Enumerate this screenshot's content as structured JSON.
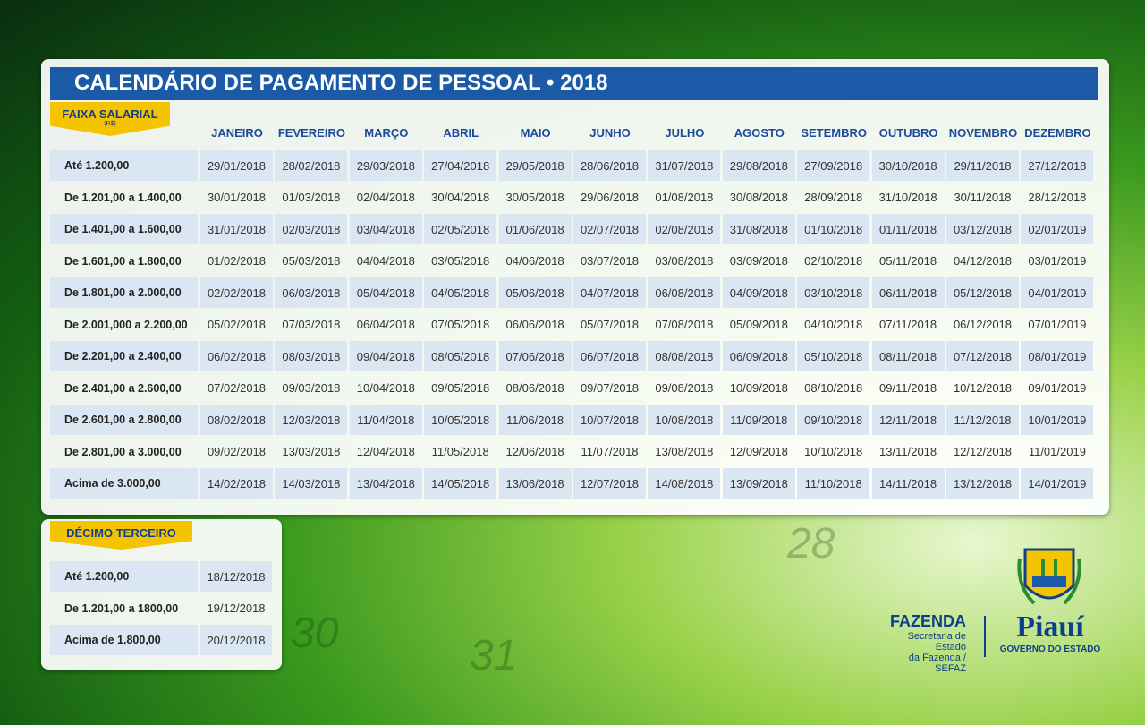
{
  "title": "CALENDÁRIO DE PAGAMENTO DE PESSOAL • 2018",
  "table": {
    "range_label": "FAIXA SALARIAL",
    "range_unit": "(R$)",
    "months": [
      "JANEIRO",
      "FEVEREIRO",
      "MARÇO",
      "ABRIL",
      "MAIO",
      "JUNHO",
      "JULHO",
      "AGOSTO",
      "SETEMBRO",
      "OUTUBRO",
      "NOVEMBRO",
      "DEZEMBRO"
    ],
    "rows": [
      [
        "Até 1.200,00",
        "29/01/2018",
        "28/02/2018",
        "29/03/2018",
        "27/04/2018",
        "29/05/2018",
        "28/06/2018",
        "31/07/2018",
        "29/08/2018",
        "27/09/2018",
        "30/10/2018",
        "29/11/2018",
        "27/12/2018"
      ],
      [
        "De 1.201,00 a 1.400,00",
        "30/01/2018",
        "01/03/2018",
        "02/04/2018",
        "30/04/2018",
        "30/05/2018",
        "29/06/2018",
        "01/08/2018",
        "30/08/2018",
        "28/09/2018",
        "31/10/2018",
        "30/11/2018",
        "28/12/2018"
      ],
      [
        "De 1.401,00 a 1.600,00",
        "31/01/2018",
        "02/03/2018",
        "03/04/2018",
        "02/05/2018",
        "01/06/2018",
        "02/07/2018",
        "02/08/2018",
        "31/08/2018",
        "01/10/2018",
        "01/11/2018",
        "03/12/2018",
        "02/01/2019"
      ],
      [
        "De 1.601,00 a 1.800,00",
        "01/02/2018",
        "05/03/2018",
        "04/04/2018",
        "03/05/2018",
        "04/06/2018",
        "03/07/2018",
        "03/08/2018",
        "03/09/2018",
        "02/10/2018",
        "05/11/2018",
        "04/12/2018",
        "03/01/2019"
      ],
      [
        "De 1.801,00 a 2.000,00",
        "02/02/2018",
        "06/03/2018",
        "05/04/2018",
        "04/05/2018",
        "05/06/2018",
        "04/07/2018",
        "06/08/2018",
        "04/09/2018",
        "03/10/2018",
        "06/11/2018",
        "05/12/2018",
        "04/01/2019"
      ],
      [
        "De 2.001,000 a 2.200,00",
        "05/02/2018",
        "07/03/2018",
        "06/04/2018",
        "07/05/2018",
        "06/06/2018",
        "05/07/2018",
        "07/08/2018",
        "05/09/2018",
        "04/10/2018",
        "07/11/2018",
        "06/12/2018",
        "07/01/2019"
      ],
      [
        "De 2.201,00 a 2.400,00",
        "06/02/2018",
        "08/03/2018",
        "09/04/2018",
        "08/05/2018",
        "07/06/2018",
        "06/07/2018",
        "08/08/2018",
        "06/09/2018",
        "05/10/2018",
        "08/11/2018",
        "07/12/2018",
        "08/01/2019"
      ],
      [
        "De 2.401,00 a 2.600,00",
        "07/02/2018",
        "09/03/2018",
        "10/04/2018",
        "09/05/2018",
        "08/06/2018",
        "09/07/2018",
        "09/08/2018",
        "10/09/2018",
        "08/10/2018",
        "09/11/2018",
        "10/12/2018",
        "09/01/2019"
      ],
      [
        "De 2.601,00 a 2.800,00",
        "08/02/2018",
        "12/03/2018",
        "11/04/2018",
        "10/05/2018",
        "11/06/2018",
        "10/07/2018",
        "10/08/2018",
        "11/09/2018",
        "09/10/2018",
        "12/11/2018",
        "11/12/2018",
        "10/01/2019"
      ],
      [
        "De 2.801,00 a 3.000,00",
        "09/02/2018",
        "13/03/2018",
        "12/04/2018",
        "11/05/2018",
        "12/06/2018",
        "11/07/2018",
        "13/08/2018",
        "12/09/2018",
        "10/10/2018",
        "13/11/2018",
        "12/12/2018",
        "11/01/2019"
      ],
      [
        "Acima de 3.000,00",
        "14/02/2018",
        "14/03/2018",
        "13/04/2018",
        "14/05/2018",
        "13/06/2018",
        "12/07/2018",
        "14/08/2018",
        "13/09/2018",
        "11/10/2018",
        "14/11/2018",
        "13/12/2018",
        "14/01/2019"
      ]
    ]
  },
  "thirteenth": {
    "title": "DÉCIMO TERCEIRO",
    "rows": [
      [
        "Até 1.200,00",
        "18/12/2018"
      ],
      [
        "De 1.201,00 a 1800,00",
        "19/12/2018"
      ],
      [
        "Acima de 1.800,00",
        "20/12/2018"
      ]
    ]
  },
  "background_numbers": [
    "28",
    "30",
    "31"
  ],
  "logo": {
    "agency": "FAZENDA",
    "agency_line1": "Secretaria de Estado",
    "agency_line2": "da Fazenda / SEFAZ",
    "state": "Piauí",
    "government": "GOVERNO DO ESTADO"
  }
}
